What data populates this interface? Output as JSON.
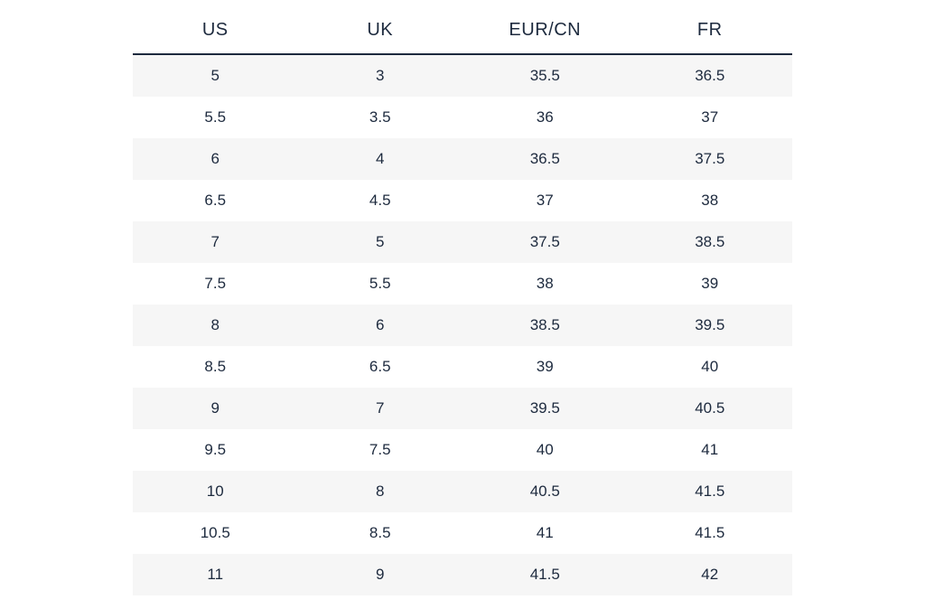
{
  "size_table": {
    "type": "table",
    "columns": [
      "US",
      "UK",
      "EUR/CN",
      "FR"
    ],
    "rows": [
      [
        "5",
        "3",
        "35.5",
        "36.5"
      ],
      [
        "5.5",
        "3.5",
        "36",
        "37"
      ],
      [
        "6",
        "4",
        "36.5",
        "37.5"
      ],
      [
        "6.5",
        "4.5",
        "37",
        "38"
      ],
      [
        "7",
        "5",
        "37.5",
        "38.5"
      ],
      [
        "7.5",
        "5.5",
        "38",
        "39"
      ],
      [
        "8",
        "6",
        "38.5",
        "39.5"
      ],
      [
        "8.5",
        "6.5",
        "39",
        "40"
      ],
      [
        "9",
        "7",
        "39.5",
        "40.5"
      ],
      [
        "9.5",
        "7.5",
        "40",
        "41"
      ],
      [
        "10",
        "8",
        "40.5",
        "41.5"
      ],
      [
        "10.5",
        "8.5",
        "41",
        "41.5"
      ],
      [
        "11",
        "9",
        "41.5",
        "42"
      ]
    ],
    "header_fontsize": 20,
    "cell_fontsize": 17,
    "text_color": "#1d2a3e",
    "header_border_color": "#1d2a3e",
    "stripe_odd_bg": "#f6f6f6",
    "stripe_even_bg": "#ffffff",
    "column_count": 4,
    "column_width_pct": 25
  }
}
